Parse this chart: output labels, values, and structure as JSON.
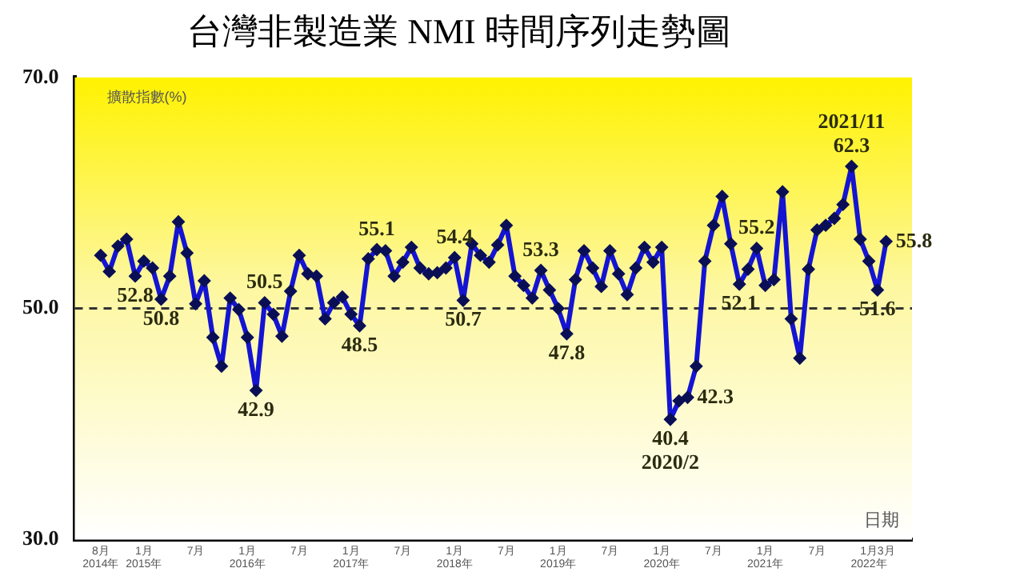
{
  "chart_data": {
    "type": "line",
    "title": "台灣非製造業 NMI 時間序列走勢圖",
    "ylabel": "擴散指數(%)",
    "xlabel": "日期",
    "x": [
      "2014-08",
      "2014-09",
      "2014-10",
      "2014-11",
      "2014-12",
      "2015-01",
      "2015-02",
      "2015-03",
      "2015-04",
      "2015-05",
      "2015-06",
      "2015-07",
      "2015-08",
      "2015-09",
      "2015-10",
      "2015-11",
      "2015-12",
      "2016-01",
      "2016-02",
      "2016-03",
      "2016-04",
      "2016-05",
      "2016-06",
      "2016-07",
      "2016-08",
      "2016-09",
      "2016-10",
      "2016-11",
      "2016-12",
      "2017-01",
      "2017-02",
      "2017-03",
      "2017-04",
      "2017-05",
      "2017-06",
      "2017-07",
      "2017-08",
      "2017-09",
      "2017-10",
      "2017-11",
      "2017-12",
      "2018-01",
      "2018-02",
      "2018-03",
      "2018-04",
      "2018-05",
      "2018-06",
      "2018-07",
      "2018-08",
      "2018-09",
      "2018-10",
      "2018-11",
      "2018-12",
      "2019-01",
      "2019-02",
      "2019-03",
      "2019-04",
      "2019-05",
      "2019-06",
      "2019-07",
      "2019-08",
      "2019-09",
      "2019-10",
      "2019-11",
      "2019-12",
      "2020-01",
      "2020-02",
      "2020-03",
      "2020-04",
      "2020-05",
      "2020-06",
      "2020-07",
      "2020-08",
      "2020-09",
      "2020-10",
      "2020-11",
      "2020-12",
      "2021-01",
      "2021-02",
      "2021-03",
      "2021-04",
      "2021-05",
      "2021-06",
      "2021-07",
      "2021-08",
      "2021-09",
      "2021-10",
      "2021-11",
      "2021-12",
      "2022-01",
      "2022-02",
      "2022-03"
    ],
    "series": [
      {
        "color": "#1414d2",
        "values": [
          54.6,
          53.2,
          55.4,
          56.0,
          52.8,
          54.1,
          53.5,
          50.8,
          52.8,
          57.5,
          54.8,
          50.4,
          52.4,
          47.5,
          45.0,
          50.9,
          49.9,
          47.5,
          42.9,
          50.5,
          49.5,
          47.6,
          51.5,
          54.6,
          53.0,
          52.8,
          49.1,
          50.5,
          51.0,
          49.5,
          48.5,
          54.3,
          55.1,
          55.0,
          52.8,
          54.0,
          55.3,
          53.5,
          53.0,
          53.1,
          53.5,
          54.4,
          50.7,
          55.6,
          54.6,
          54.0,
          55.5,
          57.2,
          52.8,
          52.0,
          50.9,
          53.3,
          51.6,
          50.0,
          47.8,
          52.5,
          55.0,
          53.5,
          51.9,
          55.0,
          53.0,
          51.2,
          53.5,
          55.3,
          54.0,
          55.3,
          40.4,
          42.0,
          42.3,
          45.0,
          54.1,
          57.2,
          59.7,
          55.6,
          52.1,
          53.4,
          55.2,
          52.0,
          52.5,
          60.1,
          49.1,
          45.7,
          53.4,
          56.8,
          57.2,
          57.8,
          59.0,
          62.3,
          56.0,
          54.1,
          51.6,
          55.8
        ]
      }
    ],
    "marker": "diamond",
    "legend": false,
    "grid": false,
    "xlim": [
      "2014-05",
      "2022-06"
    ],
    "xticks": [
      {
        "value": "2014-08",
        "label": "8月\n2014年"
      },
      {
        "value": "2015-01",
        "label": "1月\n2015年"
      },
      {
        "value": "2015-07",
        "label": "7月"
      },
      {
        "value": "2016-01",
        "label": "1月\n2016年"
      },
      {
        "value": "2016-07",
        "label": "7月"
      },
      {
        "value": "2017-01",
        "label": "1月\n2017年"
      },
      {
        "value": "2017-07",
        "label": "7月"
      },
      {
        "value": "2018-01",
        "label": "1月\n2018年"
      },
      {
        "value": "2018-07",
        "label": "7月"
      },
      {
        "value": "2019-01",
        "label": "1月\n2019年"
      },
      {
        "value": "2019-07",
        "label": "7月"
      },
      {
        "value": "2020-01",
        "label": "1月\n2020年"
      },
      {
        "value": "2020-07",
        "label": "7月"
      },
      {
        "value": "2021-01",
        "label": "1月\n2021年"
      },
      {
        "value": "2021-07",
        "label": "7月"
      },
      {
        "value": "2022-01",
        "label": "1月\n2022年"
      },
      {
        "value": "2022-03",
        "label": "3月"
      }
    ],
    "ylim": [
      30,
      70
    ],
    "yticks": [
      {
        "value": 30,
        "label": "30.0"
      },
      {
        "value": 50,
        "label": "50.0"
      },
      {
        "value": 70,
        "label": "70.0"
      }
    ],
    "ref_lines": [
      {
        "axis": "y",
        "value": 50,
        "color": "#333333",
        "line_style": "dashed"
      }
    ],
    "annotations": [
      {
        "text": "52.8",
        "x": "2014-12",
        "y": 52.8
      },
      {
        "text": "50.8",
        "x": "2015-03",
        "y": 50.8
      },
      {
        "text": "42.9",
        "x": "2016-02",
        "y": 42.9
      },
      {
        "text": "50.5",
        "x": "2016-03",
        "y": 50.5
      },
      {
        "text": "48.5",
        "x": "2017-02",
        "y": 48.5
      },
      {
        "text": "55.1",
        "x": "2017-04",
        "y": 55.1
      },
      {
        "text": "54.4",
        "x": "2018-01",
        "y": 54.4
      },
      {
        "text": "50.7",
        "x": "2018-02",
        "y": 50.7
      },
      {
        "text": "53.3",
        "x": "2018-11",
        "y": 53.3
      },
      {
        "text": "47.8",
        "x": "2019-02",
        "y": 47.8
      },
      {
        "text": "40.4",
        "x": "2020-02",
        "y": 40.4
      },
      {
        "text": "2020/2",
        "x": "2020-02",
        "y": 40.4
      },
      {
        "text": "42.3",
        "x": "2020-04",
        "y": 42.3
      },
      {
        "text": "52.1",
        "x": "2020-10",
        "y": 52.1
      },
      {
        "text": "55.2",
        "x": "2020-12",
        "y": 55.2
      },
      {
        "text": "2021/11",
        "x": "2021-11",
        "y": 62.3
      },
      {
        "text": "62.3",
        "x": "2021-11",
        "y": 62.3
      },
      {
        "text": "51.6",
        "x": "2022-02",
        "y": 51.6
      },
      {
        "text": "55.8",
        "x": "2022-03",
        "y": 55.8
      }
    ]
  }
}
